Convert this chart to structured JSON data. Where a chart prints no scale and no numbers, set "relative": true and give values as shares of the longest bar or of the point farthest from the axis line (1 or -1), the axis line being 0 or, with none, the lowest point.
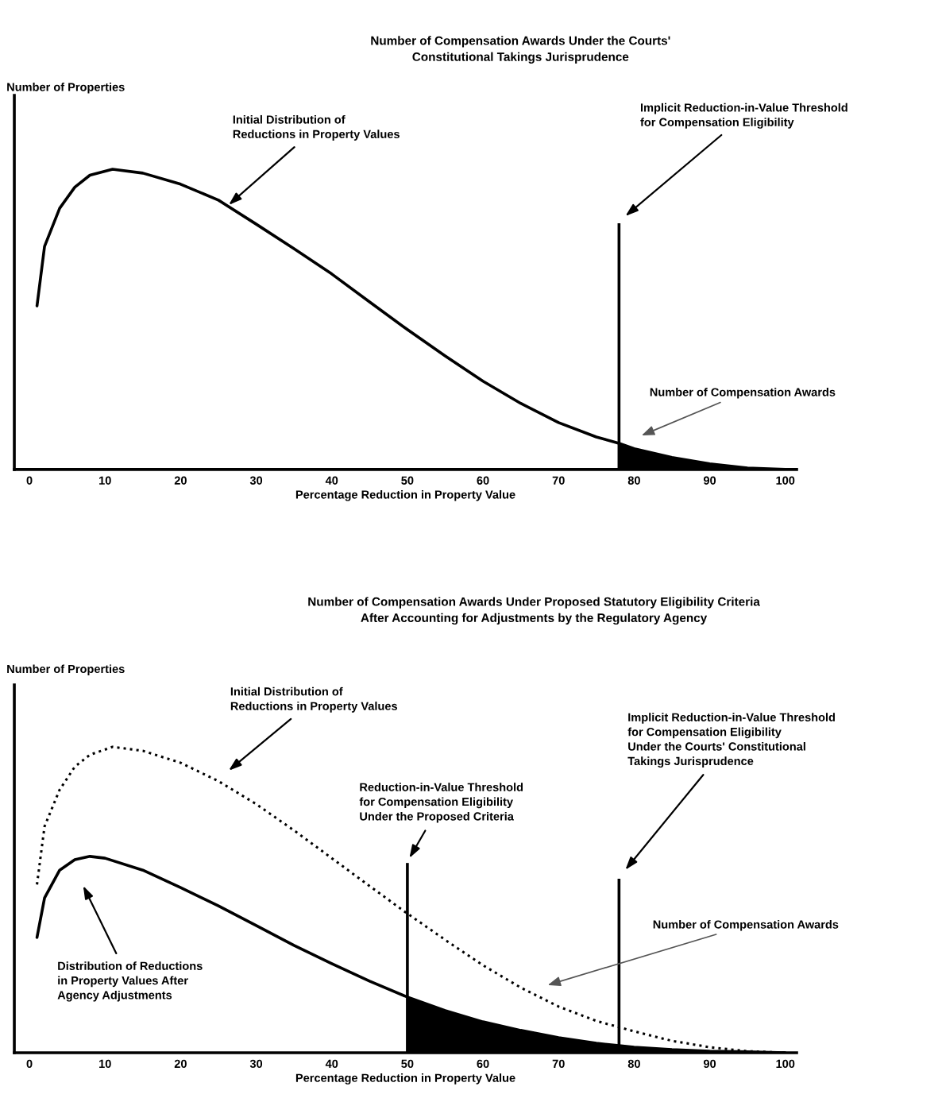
{
  "chart_data": [
    {
      "type": "line",
      "title": "Number of Compensation Awards Under the Courts'\nConstitutional Takings Jurisprudence",
      "xlabel": "Percentage Reduction in Property Value",
      "ylabel": "Number of Properties",
      "relative": true,
      "tick_labels": "x",
      "xlim": [
        -2,
        101.5
      ],
      "xticks": [
        0,
        10,
        20,
        30,
        40,
        50,
        60,
        70,
        80,
        90,
        100
      ],
      "series": [
        {
          "color": "#000000",
          "line_style": "solid",
          "x": [
            1,
            2,
            4,
            6,
            8,
            11,
            15,
            20,
            25,
            30,
            35,
            40,
            45,
            50,
            55,
            60,
            65,
            70,
            75,
            78,
            80,
            85,
            90,
            95,
            100
          ],
          "values": [
            0.545,
            0.743,
            0.87,
            0.94,
            0.98,
            1.0,
            0.987,
            0.95,
            0.897,
            0.817,
            0.735,
            0.651,
            0.558,
            0.466,
            0.378,
            0.294,
            0.22,
            0.156,
            0.108,
            0.087,
            0.069,
            0.04,
            0.019,
            0.005,
            0
          ]
        },
        {
          "type": "area",
          "color": "#000000",
          "x": [
            78,
            80,
            85,
            90,
            95,
            100
          ],
          "values": [
            0.087,
            0.069,
            0.04,
            0.019,
            0.005,
            0
          ]
        }
      ],
      "ref_lines": [
        {
          "axis": "x",
          "value": 78,
          "color": "#000000"
        }
      ],
      "annotations": [
        "Initial Distribution of\nReductions in Property Values",
        "Implicit Reduction-in-Value Threshold\nfor Compensation Eligibility",
        "Number of Compensation Awards"
      ]
    },
    {
      "type": "line",
      "title": "Number of Compensation Awards Under Proposed Statutory Eligibility Criteria\nAfter Accounting for Adjustments by the Regulatory Agency",
      "xlabel": "Percentage Reduction in Property Value",
      "ylabel": "Number of Properties",
      "relative": true,
      "tick_labels": "x",
      "xlim": [
        -2,
        101.5
      ],
      "xticks": [
        0,
        10,
        20,
        30,
        40,
        50,
        60,
        70,
        80,
        90,
        100
      ],
      "series": [
        {
          "color": "#000000",
          "line_style": "dotted",
          "x": [
            1,
            2,
            4,
            6,
            8,
            11,
            15,
            20,
            25,
            30,
            35,
            40,
            45,
            50,
            55,
            60,
            65,
            70,
            75,
            80,
            85,
            90,
            95,
            100
          ],
          "values": [
            0.55,
            0.74,
            0.86,
            0.935,
            0.974,
            1.0,
            0.987,
            0.948,
            0.888,
            0.813,
            0.727,
            0.636,
            0.545,
            0.455,
            0.369,
            0.286,
            0.213,
            0.151,
            0.104,
            0.07,
            0.039,
            0.018,
            0.005,
            0
          ]
        },
        {
          "color": "#000000",
          "line_style": "solid",
          "x": [
            1,
            2,
            4,
            6,
            8,
            10,
            15,
            20,
            25,
            30,
            35,
            40,
            45,
            50,
            55,
            60,
            65,
            70,
            75,
            78,
            80,
            85,
            90,
            95,
            100
          ],
          "values": [
            0.377,
            0.506,
            0.597,
            0.631,
            0.642,
            0.636,
            0.597,
            0.54,
            0.48,
            0.416,
            0.351,
            0.291,
            0.234,
            0.182,
            0.138,
            0.101,
            0.073,
            0.049,
            0.031,
            0.023,
            0.018,
            0.01,
            0.005,
            0.003,
            0
          ]
        },
        {
          "type": "area",
          "color": "#000000",
          "x": [
            50,
            55,
            60,
            65,
            70,
            75,
            78,
            80,
            85,
            90,
            95,
            100
          ],
          "values": [
            0.182,
            0.138,
            0.101,
            0.073,
            0.049,
            0.031,
            0.023,
            0.018,
            0.01,
            0.005,
            0.003,
            0
          ]
        }
      ],
      "ref_lines": [
        {
          "axis": "x",
          "value": 50,
          "color": "#000000"
        },
        {
          "axis": "x",
          "value": 78,
          "color": "#000000"
        }
      ],
      "annotations": [
        "Initial Distribution of\nReductions in Property Values",
        "Reduction-in-Value Threshold\nfor Compensation Eligibility\nUnder the Proposed Criteria",
        "Implicit Reduction-in-Value Threshold\nfor Compensation Eligibility\nUnder the Courts' Constitutional\nTakings Jurisprudence",
        "Number of Compensation Awards",
        "Distribution of Reductions\nin Property Values After\nAgency Adjustments"
      ]
    }
  ]
}
